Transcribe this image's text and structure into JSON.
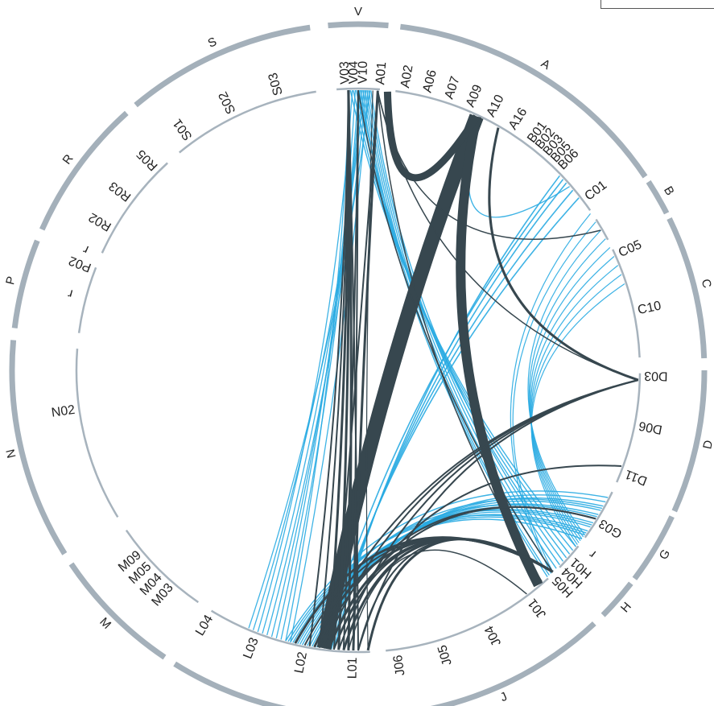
{
  "colors": {
    "outer_ring": "#a4b0ba",
    "inner_ring": "#a7b3bd",
    "ribbon_dark": "#37474f",
    "ribbon_light": "#29abe2",
    "label": "#222222"
  },
  "groups": [
    {
      "id": "V",
      "label": "V",
      "arc": [
        -5,
        5
      ]
    },
    {
      "id": "A",
      "label": "A",
      "arc": [
        7,
        56
      ]
    },
    {
      "id": "B",
      "label": "B",
      "arc": [
        57,
        63
      ]
    },
    {
      "id": "C",
      "label": "C",
      "arc": [
        64,
        88
      ]
    },
    {
      "id": "D",
      "label": "D",
      "arc": [
        90,
        114
      ]
    },
    {
      "id": "G",
      "label": "G",
      "arc": [
        115,
        127
      ]
    },
    {
      "id": "H",
      "label": "H",
      "arc": [
        128,
        135
      ]
    },
    {
      "id": "J",
      "label": "J",
      "arc": [
        137,
        175
      ]
    },
    {
      "id": "L",
      "label": "L",
      "arc": [
        177,
        212
      ]
    },
    {
      "id": "M",
      "label": "M",
      "arc": [
        214,
        236
      ]
    },
    {
      "id": "N",
      "label": "N",
      "arc": [
        238,
        275
      ]
    },
    {
      "id": "P",
      "label": "P",
      "arc": [
        277,
        292
      ]
    },
    {
      "id": "R",
      "label": "R",
      "arc": [
        294,
        318
      ]
    },
    {
      "id": "S",
      "label": "S",
      "arc": [
        320,
        352
      ]
    }
  ],
  "nodes": [
    {
      "label": "V03",
      "angle": -2.5
    },
    {
      "label": "V04",
      "angle": -0.8
    },
    {
      "label": "V10",
      "angle": 1.0
    },
    {
      "label": "A01",
      "angle": 4.5
    },
    {
      "label": "A02",
      "angle": 9.5
    },
    {
      "label": "A06",
      "angle": 14
    },
    {
      "label": "A07",
      "angle": 18.5
    },
    {
      "label": "A09",
      "angle": 23
    },
    {
      "label": "A10",
      "angle": 27.5
    },
    {
      "label": "A16",
      "angle": 32.5
    },
    {
      "label": "B01",
      "angle": 37
    },
    {
      "label": "B02",
      "angle": 39
    },
    {
      "label": "B03",
      "angle": 41
    },
    {
      "label": "B05",
      "angle": 43
    },
    {
      "label": "B06",
      "angle": 45
    },
    {
      "label": "C01",
      "angle": 53
    },
    {
      "label": "C05",
      "angle": 66
    },
    {
      "label": "C10",
      "angle": 78
    },
    {
      "label": "D03",
      "angle": 91
    },
    {
      "label": "D06",
      "angle": 101
    },
    {
      "label": "D11",
      "angle": 111
    },
    {
      "label": "G03",
      "angle": 122
    },
    {
      "label": "r",
      "angle": 128
    },
    {
      "label": "H01",
      "angle": 131.5
    },
    {
      "label": "H04",
      "angle": 134
    },
    {
      "label": "H05",
      "angle": 136.5
    },
    {
      "label": "J01",
      "angle": 143
    },
    {
      "label": "J04",
      "angle": 153
    },
    {
      "label": "J05",
      "angle": 163
    },
    {
      "label": "J06",
      "angle": 172
    },
    {
      "label": "L01",
      "angle": 181
    },
    {
      "label": "L02",
      "angle": 191
    },
    {
      "label": "L03",
      "angle": 201
    },
    {
      "label": "L04",
      "angle": 211
    },
    {
      "label": "M03",
      "angle": 221
    },
    {
      "label": "M04",
      "angle": 224
    },
    {
      "label": "M05",
      "angle": 227
    },
    {
      "label": "M09",
      "angle": 230
    },
    {
      "label": "N02",
      "angle": 262
    },
    {
      "label": "r",
      "angle": 285
    },
    {
      "label": "P02",
      "angle": 291
    },
    {
      "label": "r",
      "angle": 294
    },
    {
      "label": "R02",
      "angle": 300
    },
    {
      "label": "R03",
      "angle": 307
    },
    {
      "label": "R05",
      "angle": 315
    },
    {
      "label": "S01",
      "angle": 324
    },
    {
      "label": "S02",
      "angle": 334
    },
    {
      "label": "S03",
      "angle": 344
    }
  ],
  "ribbons_dark": [
    {
      "from": 25,
      "to": 187,
      "weight": 18
    },
    {
      "from": 25,
      "to": 140,
      "weight": 12
    },
    {
      "from": 25,
      "to": 6,
      "weight": 9
    },
    {
      "from": 30,
      "to": 92,
      "weight": 3
    },
    {
      "from": 92,
      "to": 184,
      "weight": 2
    },
    {
      "from": 92,
      "to": 180,
      "weight": 2
    },
    {
      "from": 136,
      "to": 178,
      "weight": 3
    },
    {
      "from": 136,
      "to": 183,
      "weight": 3
    },
    {
      "from": 136,
      "to": 186,
      "weight": 3
    },
    {
      "from": 136,
      "to": 189,
      "weight": 3
    },
    {
      "from": 136,
      "to": 193,
      "weight": 3
    },
    {
      "from": 136,
      "to": 180,
      "weight": 2
    },
    {
      "from": 136,
      "to": 185,
      "weight": 2
    },
    {
      "from": 136,
      "to": 191,
      "weight": 2
    },
    {
      "from": 4,
      "to": 181,
      "weight": 3
    },
    {
      "from": 4,
      "to": 185,
      "weight": 2
    },
    {
      "from": 4,
      "to": 139,
      "weight": 1.5
    },
    {
      "from": 4,
      "to": 92,
      "weight": 1.5
    },
    {
      "from": 4,
      "to": 60,
      "weight": 1.5
    },
    {
      "from": 3,
      "to": 178,
      "weight": 1.2
    },
    {
      "from": -2,
      "to": 186,
      "weight": 3
    },
    {
      "from": -2,
      "to": 184,
      "weight": 3
    },
    {
      "from": -2,
      "to": 182,
      "weight": 3
    },
    {
      "from": -2,
      "to": 188,
      "weight": 2
    },
    {
      "from": -2,
      "to": 180,
      "weight": 2
    },
    {
      "from": -2,
      "to": 190,
      "weight": 2
    },
    {
      "from": 0,
      "to": 136,
      "weight": 1.5
    },
    {
      "from": 0,
      "to": 181,
      "weight": 2
    },
    {
      "from": 0,
      "to": 183,
      "weight": 2
    },
    {
      "from": 92,
      "to": 187,
      "weight": 2
    },
    {
      "from": 92,
      "to": 189,
      "weight": 2
    },
    {
      "from": 122,
      "to": 186,
      "weight": 2
    },
    {
      "from": 122,
      "to": 188,
      "weight": 2
    },
    {
      "from": 110,
      "to": 185,
      "weight": 2
    },
    {
      "from": 143,
      "to": 182,
      "weight": 1.5
    }
  ],
  "ribbons_light": [
    {
      "from": 1,
      "to": 137,
      "weight": 1.4
    },
    {
      "from": 1.4,
      "to": 136,
      "weight": 1.4
    },
    {
      "from": 1.8,
      "to": 135,
      "weight": 1.4
    },
    {
      "from": 2.2,
      "to": 134,
      "weight": 1.4
    },
    {
      "from": 2.6,
      "to": 133,
      "weight": 1.4
    },
    {
      "from": 0.2,
      "to": 132,
      "weight": 1.4
    },
    {
      "from": -0.4,
      "to": 131,
      "weight": 1.4
    },
    {
      "from": -1.0,
      "to": 130,
      "weight": 1.4
    },
    {
      "from": -1.6,
      "to": 129,
      "weight": 1.4
    },
    {
      "from": 0.6,
      "to": 137.5,
      "weight": 1.4
    },
    {
      "from": 0.0,
      "to": 196,
      "weight": 1.3
    },
    {
      "from": 0.4,
      "to": 198,
      "weight": 1.3
    },
    {
      "from": 0.8,
      "to": 200,
      "weight": 1.3
    },
    {
      "from": 1.2,
      "to": 202,
      "weight": 1.3
    },
    {
      "from": 1.6,
      "to": 199,
      "weight": 1.3
    },
    {
      "from": -0.6,
      "to": 197,
      "weight": 1.3
    },
    {
      "from": -1.2,
      "to": 201,
      "weight": 1.3
    },
    {
      "from": -1.8,
      "to": 195,
      "weight": 1.3
    },
    {
      "from": 2.0,
      "to": 194,
      "weight": 1.3
    },
    {
      "from": 2.4,
      "to": 203,
      "weight": 1.3
    },
    {
      "from": 188,
      "to": 118,
      "weight": 1.4
    },
    {
      "from": 188.5,
      "to": 119,
      "weight": 1.4
    },
    {
      "from": 189,
      "to": 120,
      "weight": 1.4
    },
    {
      "from": 189.5,
      "to": 121,
      "weight": 1.4
    },
    {
      "from": 190,
      "to": 122,
      "weight": 1.4
    },
    {
      "from": 190.5,
      "to": 123,
      "weight": 1.4
    },
    {
      "from": 191,
      "to": 124,
      "weight": 1.4
    },
    {
      "from": 191.5,
      "to": 125,
      "weight": 1.4
    },
    {
      "from": 192,
      "to": 126,
      "weight": 1.4
    },
    {
      "from": 192.5,
      "to": 127,
      "weight": 1.4
    },
    {
      "from": 193,
      "to": 119.5,
      "weight": 1.4
    },
    {
      "from": 193.5,
      "to": 121.5,
      "weight": 1.4
    },
    {
      "from": 194,
      "to": 123.5,
      "weight": 1.4
    },
    {
      "from": 194.5,
      "to": 125.5,
      "weight": 1.4
    },
    {
      "from": 195,
      "to": 117,
      "weight": 1.4
    },
    {
      "from": 185,
      "to": 46,
      "weight": 1.6
    },
    {
      "from": 185.5,
      "to": 48,
      "weight": 1.6
    },
    {
      "from": 186,
      "to": 50,
      "weight": 1.6
    },
    {
      "from": 186.5,
      "to": 52,
      "weight": 1.6
    },
    {
      "from": 187,
      "to": 47,
      "weight": 1.6
    },
    {
      "from": 26,
      "to": 49,
      "weight": 1.4
    },
    {
      "from": 126,
      "to": 60,
      "weight": 1.2
    },
    {
      "from": 126.5,
      "to": 62,
      "weight": 1.2
    },
    {
      "from": 127,
      "to": 64,
      "weight": 1.2
    },
    {
      "from": 127.5,
      "to": 66,
      "weight": 1.2
    },
    {
      "from": 128,
      "to": 68,
      "weight": 1.2
    },
    {
      "from": 128.5,
      "to": 70,
      "weight": 1.2
    },
    {
      "from": 129,
      "to": 72,
      "weight": 1.2
    },
    {
      "from": 136,
      "to": 58,
      "weight": 1.2
    },
    {
      "from": 136.5,
      "to": 56,
      "weight": 1.2
    }
  ]
}
